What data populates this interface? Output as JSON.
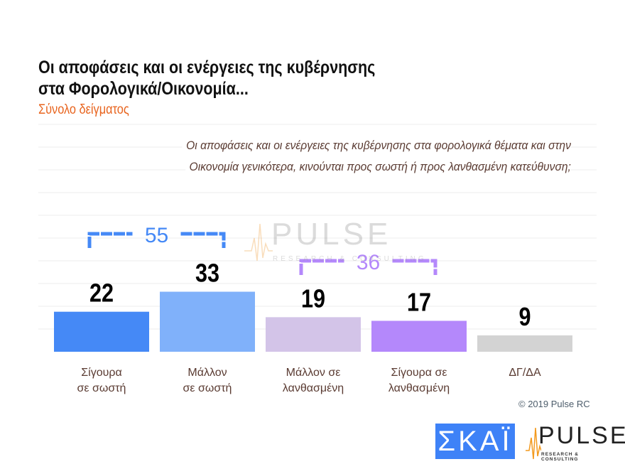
{
  "title_lines": [
    "Οι αποφάσεις και οι ενέργειες της κυβέρνησης",
    "στα Φορολογικά/Οικονομία..."
  ],
  "subtitle": "Σύνολο δείγματος",
  "question_lines": [
    "Οι αποφάσεις και οι ενέργειες της κυβέρνησης στα φορολογικά θέματα και στην",
    "Οικονομία γενικότερα, κινούνται προς σωστή ή προς λανθασμένη κατεύθυνση;"
  ],
  "chart_data": {
    "type": "bar",
    "categories": [
      "Σίγουρα\nσε σωστή",
      "Μάλλον\nσε σωστή",
      "Μάλλον σε\nλανθασμένη",
      "Σίγουρα σε\nλανθασμένη",
      "ΔΓ/ΔΑ"
    ],
    "values": [
      22,
      33,
      19,
      17,
      9
    ],
    "colors": [
      "#4589f6",
      "#80b1fa",
      "#d3c4e8",
      "#b488fb",
      "#d3d3d3"
    ],
    "ylim": [
      0,
      40
    ],
    "grid": true,
    "groups": [
      {
        "label": "55",
        "from": 0,
        "to": 1,
        "color": "#4589f6"
      },
      {
        "label": "36",
        "from": 2,
        "to": 3,
        "color": "#b488fb"
      }
    ]
  },
  "copyright": "© 2019 Pulse RC",
  "logos": {
    "skai": "ΣΚΑΪ",
    "pulse": "PULSE",
    "pulse_tag": "RESEARCH & CONSULTING"
  }
}
